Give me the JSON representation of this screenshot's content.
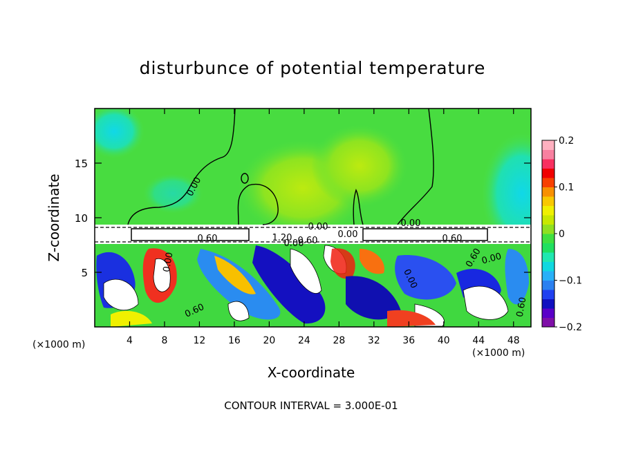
{
  "chart_data": {
    "type": "heatmap",
    "title": "disturbunce of potential temperature",
    "xlabel": "X-coordinate",
    "ylabel": "Z-coordinate",
    "x_unit": "(×1000 m)",
    "x_unit_right": "(×1000 m)",
    "xlim": [
      0,
      50
    ],
    "ylim": [
      0,
      20
    ],
    "x_ticks": [
      4,
      8,
      12,
      16,
      20,
      24,
      28,
      32,
      36,
      40,
      44,
      48
    ],
    "x_tick_labels": [
      "4",
      "8",
      "12",
      "16",
      "20",
      "24",
      "28",
      "32",
      "36",
      "40",
      "44",
      "48"
    ],
    "y_ticks": [
      5,
      10,
      15
    ],
    "y_tick_labels": [
      "5",
      "10",
      "15"
    ],
    "colorbar": {
      "range": [
        -0.2,
        0.2
      ],
      "ticks": [
        0.2,
        0.1,
        0,
        -0.1,
        -0.2
      ],
      "tick_labels": [
        "0.2",
        "0.1",
        "0",
        "−0.1",
        "−0.2"
      ],
      "colors": [
        "#7f0fa8",
        "#5a00c8",
        "#1010c0",
        "#2040f0",
        "#2a80f0",
        "#28b0f8",
        "#10d8e0",
        "#20e8b0",
        "#20e060",
        "#40e040",
        "#90e020",
        "#c8e800",
        "#f0f000",
        "#f8c800",
        "#f89000",
        "#f84000",
        "#f00000",
        "#f83060",
        "#f880a0",
        "#ffb0c0"
      ]
    },
    "contour_labels": [
      "0.00",
      "0.00",
      "0.00",
      "0.60",
      "1.20",
      "0.00",
      "0.60",
      "0.00",
      "0.60",
      "0.00",
      "0.60",
      "0.60",
      "0.00",
      "0.00",
      "0.60"
    ],
    "contour_interval_text": "CONTOUR INTERVAL = 3.000E-01"
  }
}
